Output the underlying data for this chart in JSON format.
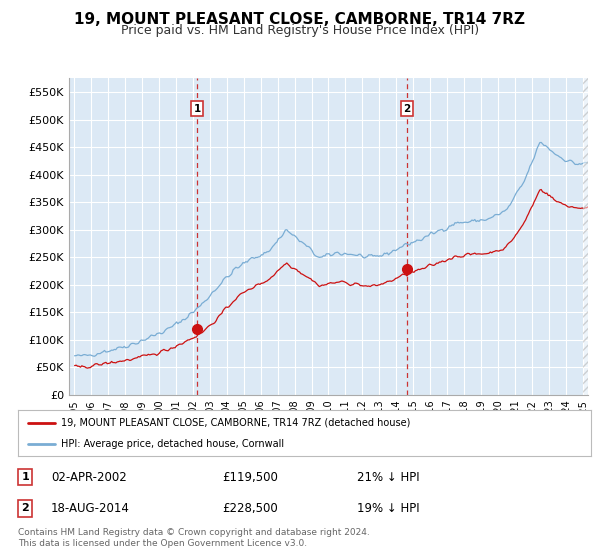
{
  "title": "19, MOUNT PLEASANT CLOSE, CAMBORNE, TR14 7RZ",
  "subtitle": "Price paid vs. HM Land Registry's House Price Index (HPI)",
  "title_fontsize": 11,
  "subtitle_fontsize": 9,
  "background_color": "#ffffff",
  "plot_bg_color": "#dce9f5",
  "grid_color": "#ffffff",
  "hpi_color": "#7aadd4",
  "price_color": "#cc1111",
  "vline_color": "#cc3333",
  "sale1_x": 2002.25,
  "sale1_y": 119500,
  "sale2_x": 2014.62,
  "sale2_y": 228500,
  "legend_line1": "19, MOUNT PLEASANT CLOSE, CAMBORNE, TR14 7RZ (detached house)",
  "legend_line2": "HPI: Average price, detached house, Cornwall",
  "table_row1": [
    "1",
    "02-APR-2002",
    "£119,500",
    "21% ↓ HPI"
  ],
  "table_row2": [
    "2",
    "18-AUG-2014",
    "£228,500",
    "19% ↓ HPI"
  ],
  "footer": "Contains HM Land Registry data © Crown copyright and database right 2024.\nThis data is licensed under the Open Government Licence v3.0.",
  "xlim_left": 1994.7,
  "xlim_right": 2025.3,
  "ylim": [
    0,
    575000
  ],
  "yticks": [
    0,
    50000,
    100000,
    150000,
    200000,
    250000,
    300000,
    350000,
    400000,
    450000,
    500000,
    550000
  ],
  "ytick_labels": [
    "£0",
    "£50K",
    "£100K",
    "£150K",
    "£200K",
    "£250K",
    "£300K",
    "£350K",
    "£400K",
    "£450K",
    "£500K",
    "£550K"
  ]
}
